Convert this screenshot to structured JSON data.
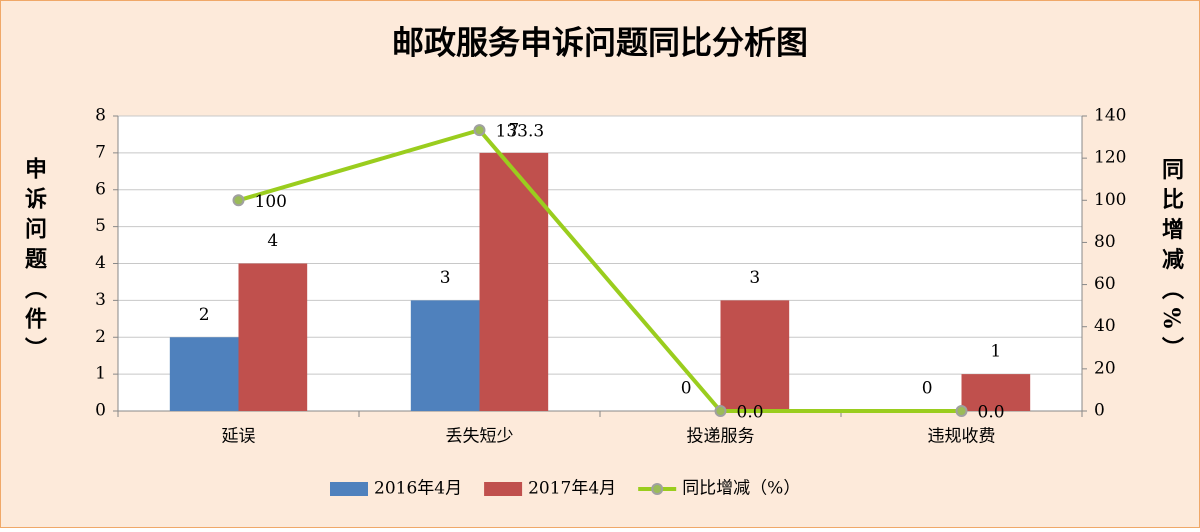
{
  "chart_data": {
    "type": "bar-line",
    "title": "邮政服务申诉问题同比分析图",
    "y_label": "申诉问题（件）",
    "y2_label": "同比增减（%）",
    "categories": [
      "延误",
      "丢失短少",
      "投递服务",
      "违规收费"
    ],
    "series": [
      {
        "name": "2016年4月",
        "color": "#4f81bd",
        "type": "bar",
        "values": [
          2,
          3,
          0,
          0
        ]
      },
      {
        "name": "2017年4月",
        "color": "#c0504d",
        "type": "bar",
        "values": [
          4,
          7,
          3,
          1
        ]
      },
      {
        "name": "同比增减（%）",
        "color": "#9acd1e",
        "type": "line",
        "axis": "y2",
        "values": [
          100,
          133.3,
          0,
          0
        ],
        "value_labels": [
          "100",
          "133.3",
          "0.0",
          "0.0"
        ]
      }
    ],
    "ylim": [
      0,
      8
    ],
    "yticks": [
      0,
      1,
      2,
      3,
      4,
      5,
      6,
      7,
      8
    ],
    "y2lim": [
      0,
      140
    ],
    "y2ticks": [
      0,
      20,
      40,
      60,
      80,
      100,
      120,
      140
    ],
    "grid": true,
    "legend": "bottom"
  }
}
